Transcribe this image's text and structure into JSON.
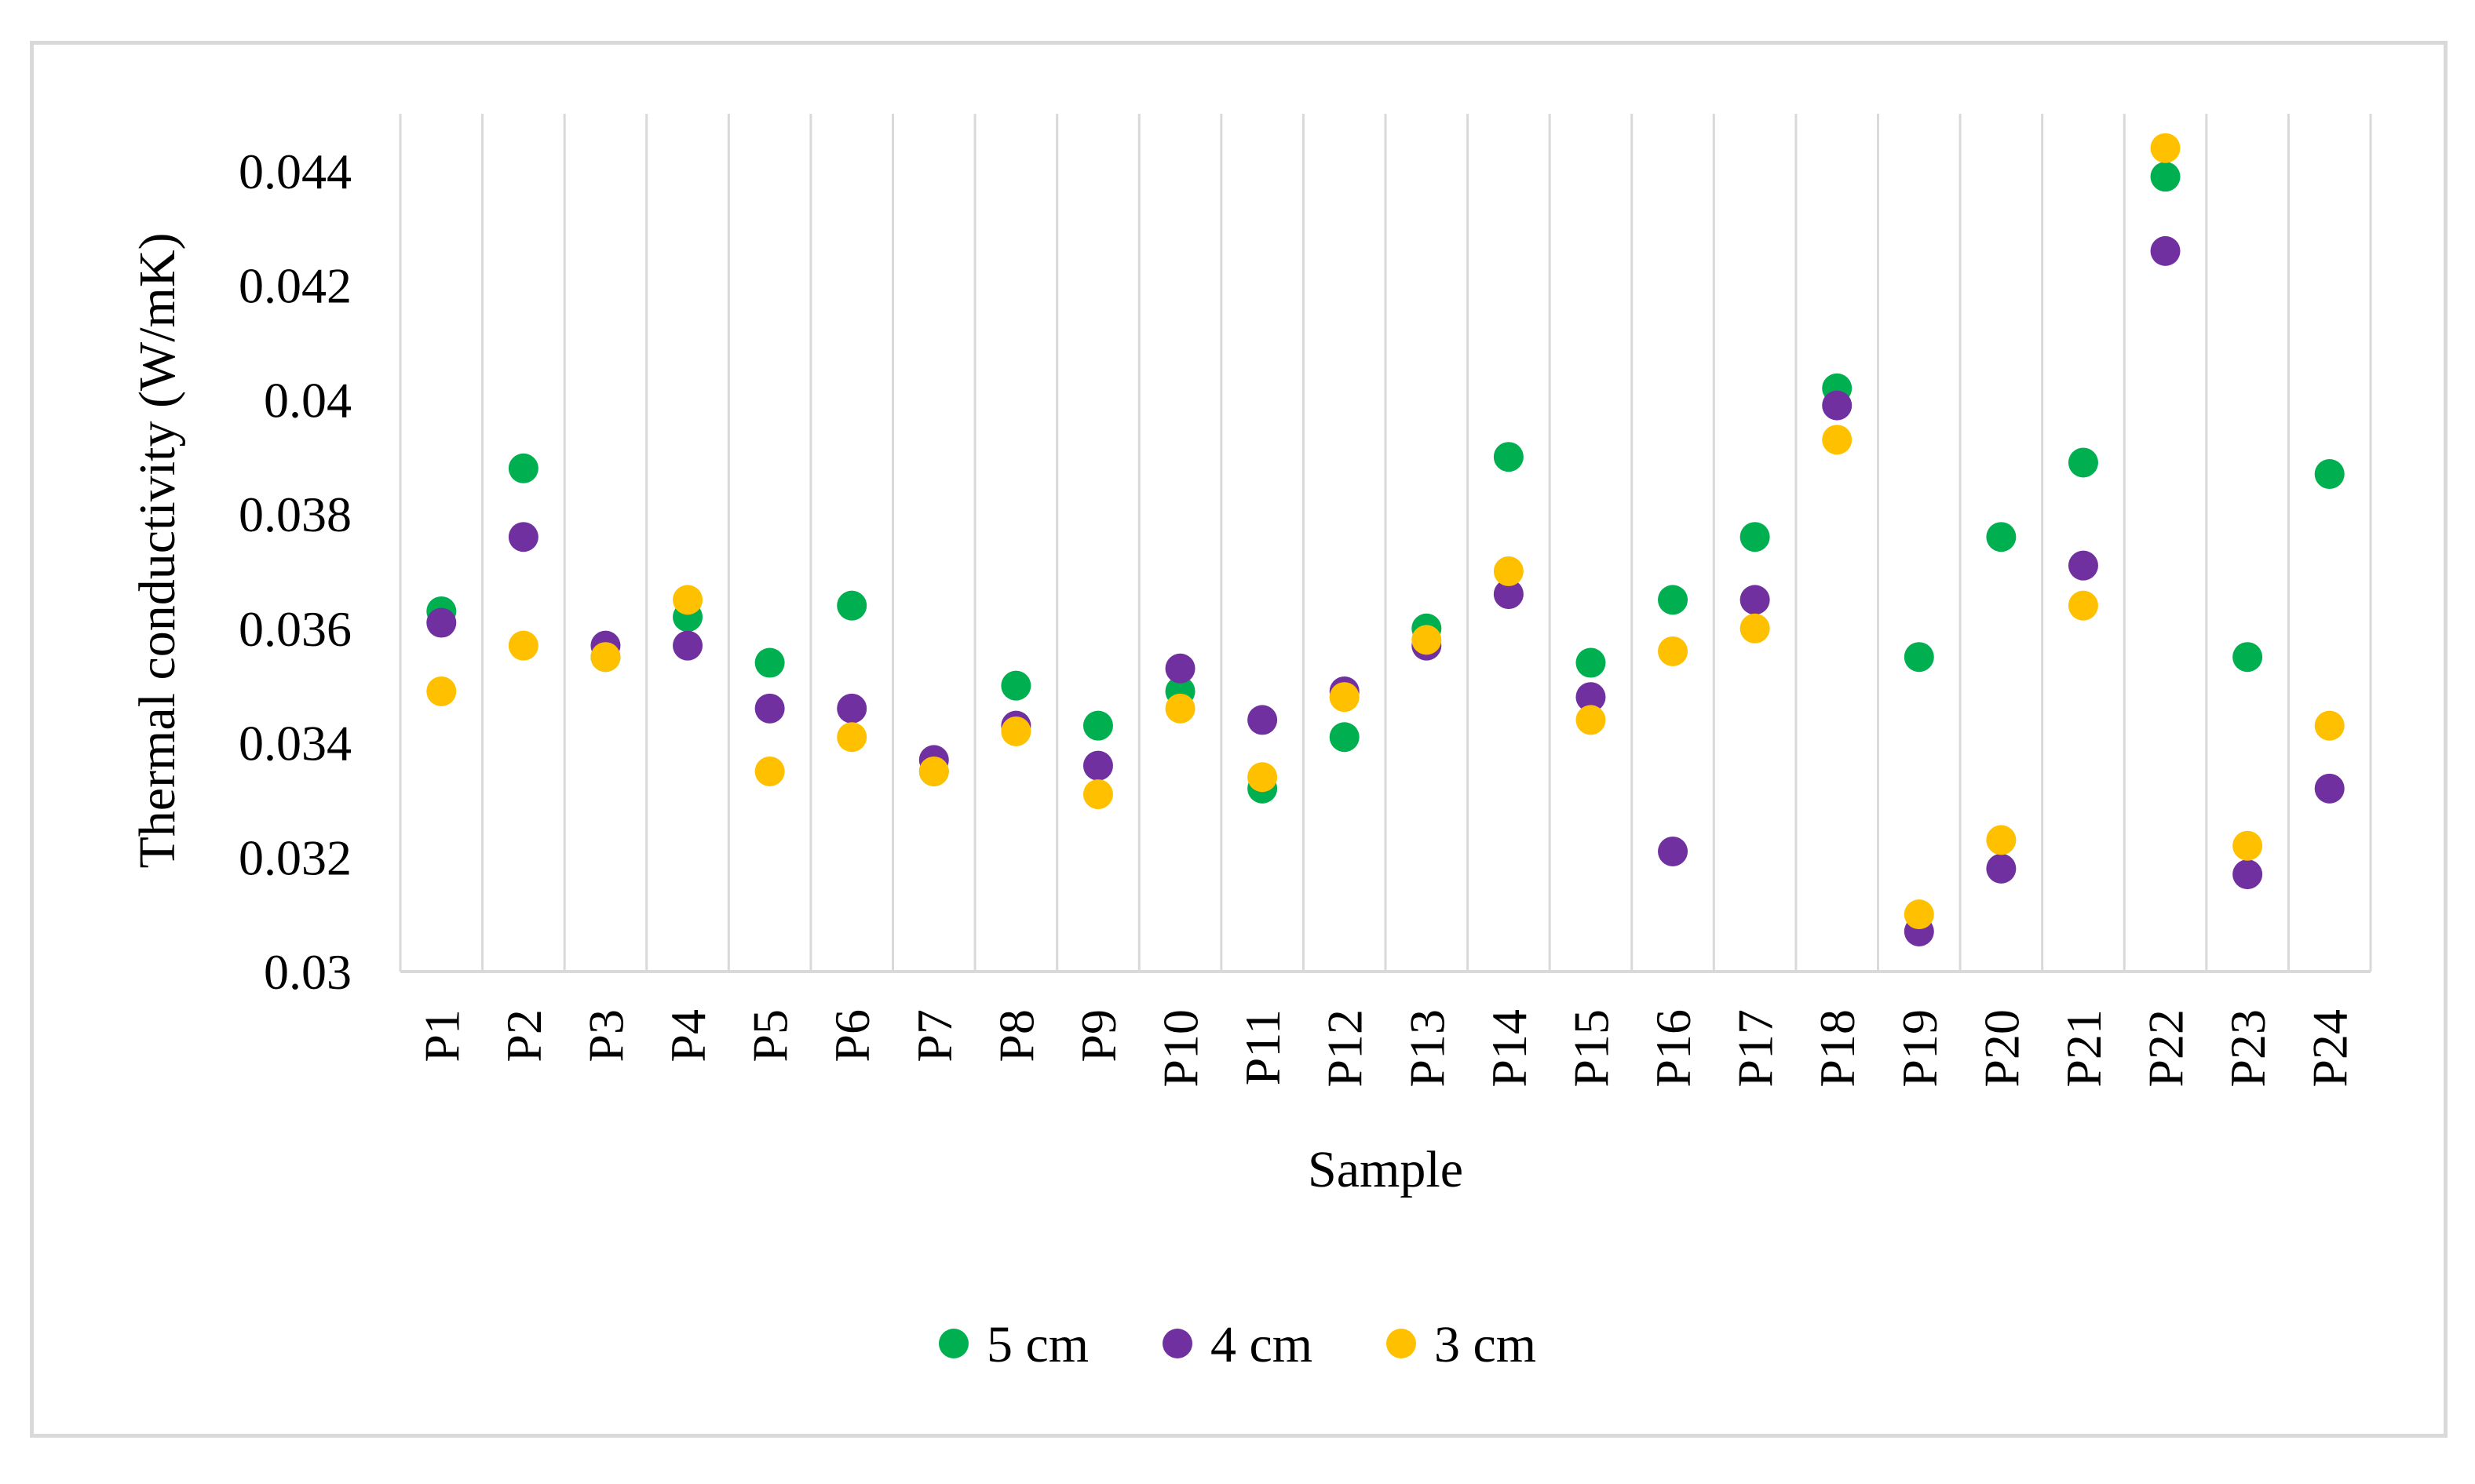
{
  "chart_data": {
    "type": "scatter",
    "title": "",
    "xlabel": "Sample",
    "ylabel": "Thermal conductivity  (W/mK)",
    "categories": [
      "P1",
      "P2",
      "P3",
      "P4",
      "P5",
      "P6",
      "P7",
      "P8",
      "P9",
      "P10",
      "P11",
      "P12",
      "P13",
      "P14",
      "P15",
      "P16",
      "P17",
      "P18",
      "P19",
      "P20",
      "P21",
      "P22",
      "P23",
      "P24"
    ],
    "ylim": [
      0.03,
      0.045
    ],
    "yticks": [
      0.03,
      0.032,
      0.034,
      0.036,
      0.038,
      0.04,
      0.042,
      0.044
    ],
    "ytick_labels": [
      "0.03",
      "0.032",
      "0.034",
      "0.036",
      "0.038",
      "0.04",
      "0.042",
      "0.044"
    ],
    "grid": "vertical",
    "legend_position": "bottom",
    "series": [
      {
        "name": "5 cm",
        "color": "#00b050",
        "values": [
          0.0363,
          0.0388,
          0.0355,
          0.0362,
          0.0354,
          0.0364,
          0.0335,
          0.035,
          0.0343,
          0.0349,
          0.0332,
          0.0341,
          0.036,
          0.039,
          0.0354,
          0.0365,
          0.0376,
          0.0402,
          0.0355,
          0.0376,
          0.0389,
          0.0439,
          0.0355,
          0.0387
        ]
      },
      {
        "name": "4 cm",
        "color": "#7030a0",
        "values": [
          0.0361,
          0.0376,
          0.0357,
          0.0357,
          0.0346,
          0.0346,
          0.0337,
          0.0343,
          0.0336,
          0.0353,
          0.0344,
          0.0349,
          0.0357,
          0.0366,
          0.0348,
          0.0321,
          0.0365,
          0.0399,
          0.0307,
          0.0318,
          0.0371,
          0.0426,
          0.0317,
          0.0332
        ]
      },
      {
        "name": "3 cm",
        "color": "#ffc000",
        "values": [
          0.0349,
          0.0357,
          0.0355,
          0.0365,
          0.0335,
          0.0341,
          0.0335,
          0.0342,
          0.0331,
          0.0346,
          0.0334,
          0.0348,
          0.0358,
          0.037,
          0.0344,
          0.0356,
          0.036,
          0.0393,
          0.031,
          0.0323,
          0.0364,
          0.0444,
          0.0322,
          0.0343
        ]
      }
    ]
  }
}
